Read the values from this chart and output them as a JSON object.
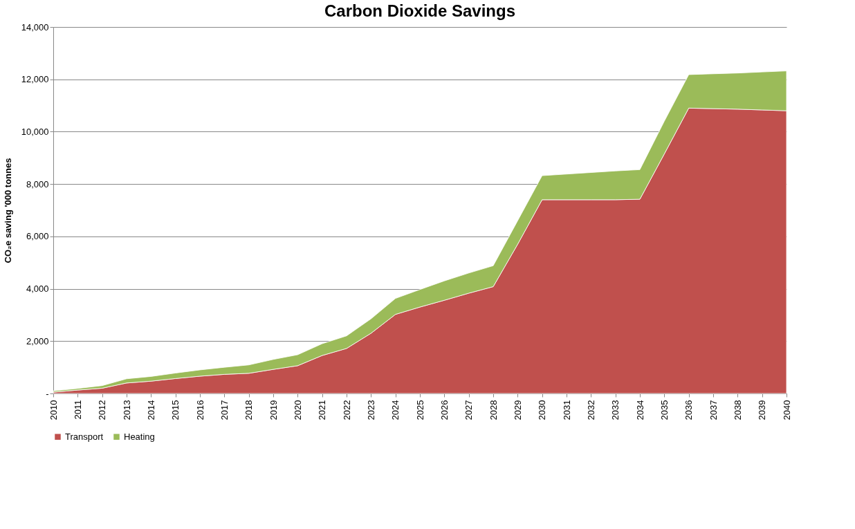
{
  "chart_data": {
    "type": "area",
    "title": "Carbon Dioxide Savings",
    "ylabel": "CO₂e saving  '000 tonnes",
    "categories": [
      "2010",
      "2011",
      "2012",
      "2013",
      "2014",
      "2015",
      "2016",
      "2017",
      "2018",
      "2019",
      "2020",
      "2021",
      "2022",
      "2023",
      "2024",
      "2025",
      "2026",
      "2027",
      "2028",
      "2029",
      "2030",
      "2031",
      "2032",
      "2033",
      "2034",
      "2035",
      "2036",
      "2037",
      "2038",
      "2039",
      "2040"
    ],
    "stacked": true,
    "series": [
      {
        "name": "Transport",
        "color": "#c0504d",
        "values": [
          50,
          130,
          200,
          400,
          470,
          570,
          660,
          730,
          770,
          920,
          1060,
          1450,
          1720,
          2300,
          3020,
          3300,
          3560,
          3830,
          4080,
          5700,
          7400,
          7400,
          7400,
          7400,
          7420,
          9150,
          10900,
          10880,
          10860,
          10830,
          10800
        ]
      },
      {
        "name": "Heating",
        "color": "#9bbb59",
        "values": [
          50,
          60,
          100,
          160,
          180,
          210,
          240,
          270,
          320,
          380,
          420,
          450,
          480,
          550,
          610,
          670,
          740,
          770,
          800,
          900,
          920,
          980,
          1040,
          1100,
          1130,
          1250,
          1280,
          1330,
          1380,
          1450,
          1520
        ]
      }
    ],
    "ylim": [
      0,
      14000
    ],
    "yticks": [
      {
        "value": 0,
        "label": "-"
      },
      {
        "value": 2000,
        "label": "2,000"
      },
      {
        "value": 4000,
        "label": "4,000"
      },
      {
        "value": 6000,
        "label": "6,000"
      },
      {
        "value": 8000,
        "label": "8,000"
      },
      {
        "value": 10000,
        "label": "10,000"
      },
      {
        "value": 12000,
        "label": "12,000"
      },
      {
        "value": 14000,
        "label": "14,000"
      }
    ],
    "grid": "y",
    "legend": "bottom"
  }
}
